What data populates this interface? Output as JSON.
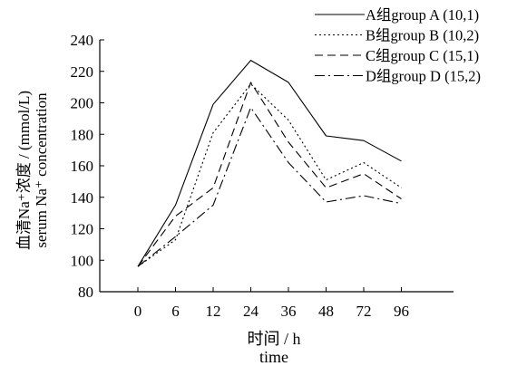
{
  "chart_data": {
    "type": "line",
    "xlabel": "时间 / h",
    "xlabel_en": "time",
    "ylabel": "血清Na⁺浓度 / (mmol/L)",
    "ylabel_en": "serum Na⁺ concentration",
    "categories": [
      "0",
      "6",
      "12",
      "24",
      "36",
      "48",
      "72",
      "96"
    ],
    "ylim": [
      80,
      240
    ],
    "yticks": [
      80,
      100,
      120,
      140,
      160,
      180,
      200,
      220,
      240
    ],
    "grid": false,
    "legend_position": "top-right",
    "series": [
      {
        "name": "A组group A (10,1)",
        "style": "solid",
        "values": [
          96,
          135,
          199,
          227,
          213,
          179,
          176,
          163
        ]
      },
      {
        "name": "B组group B (10,2)",
        "style": "dotted",
        "values": [
          96,
          113,
          181,
          212,
          189,
          151,
          162,
          146
        ]
      },
      {
        "name": "C组group C (15,1)",
        "style": "dashed",
        "values": [
          96,
          128,
          146,
          213,
          175,
          146,
          155,
          139
        ]
      },
      {
        "name": "D组group D (15,2)",
        "style": "dashdot",
        "values": [
          96,
          115,
          135,
          197,
          162,
          137,
          141,
          136
        ]
      }
    ]
  }
}
